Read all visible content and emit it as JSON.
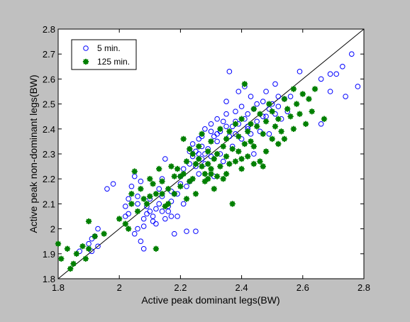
{
  "chart_data": {
    "type": "scatter",
    "xlabel": "Active peak dominant legs(BW)",
    "ylabel": "Active peak non-dominant legs(BW)",
    "xlim": [
      1.8,
      2.8
    ],
    "ylim": [
      1.8,
      2.8
    ],
    "x_ticks": [
      "1.8",
      "2",
      "2.2",
      "2.4",
      "2.6",
      "2.8"
    ],
    "y_ticks": [
      "1.8",
      "1.9",
      "2",
      "2.1",
      "2.2",
      "2.3",
      "2.4",
      "2.5",
      "2.6",
      "2.7",
      "2.8"
    ],
    "grid": false,
    "legend_position": "top-left",
    "reference_line": {
      "x": [
        1.8,
        2.8
      ],
      "y": [
        1.8,
        2.8
      ]
    },
    "colors": {
      "figure_background": "#c0c0c0",
      "axes_background": "#ffffff",
      "series_5min": "#0000ff",
      "series_125min": "#007f00",
      "reference_line": "#000000"
    },
    "series": [
      {
        "name": "5 min.",
        "marker": "open-circle",
        "color": "#0000ff",
        "points": [
          [
            1.87,
            1.91
          ],
          [
            1.9,
            1.94
          ],
          [
            1.91,
            1.96
          ],
          [
            1.92,
            1.97
          ],
          [
            1.93,
            2.0
          ],
          [
            1.91,
            1.91
          ],
          [
            1.93,
            1.93
          ],
          [
            1.96,
            2.16
          ],
          [
            1.98,
            2.18
          ],
          [
            2.02,
            2.05
          ],
          [
            2.02,
            2.09
          ],
          [
            2.03,
            2.06
          ],
          [
            2.03,
            2.12
          ],
          [
            2.04,
            2.17
          ],
          [
            2.05,
            2.21
          ],
          [
            2.06,
            2.13
          ],
          [
            2.06,
            2.1
          ],
          [
            2.07,
            2.19
          ],
          [
            2.07,
            1.95
          ],
          [
            2.08,
            1.92
          ],
          [
            2.08,
            2.01
          ],
          [
            2.08,
            2.04
          ],
          [
            2.09,
            2.06
          ],
          [
            2.09,
            2.09
          ],
          [
            2.1,
            2.12
          ],
          [
            2.11,
            2.05
          ],
          [
            2.11,
            2.03
          ],
          [
            2.12,
            2.02
          ],
          [
            2.12,
            2.08
          ],
          [
            2.13,
            2.1
          ],
          [
            2.13,
            2.16
          ],
          [
            2.14,
            2.13
          ],
          [
            2.14,
            2.2
          ],
          [
            2.15,
            2.28
          ],
          [
            2.15,
            2.04
          ],
          [
            2.16,
            2.09
          ],
          [
            2.16,
            2.07
          ],
          [
            2.17,
            2.11
          ],
          [
            2.17,
            2.15
          ],
          [
            2.18,
            1.98
          ],
          [
            2.19,
            2.05
          ],
          [
            2.19,
            2.14
          ],
          [
            2.2,
            2.21
          ],
          [
            2.21,
            2.1
          ],
          [
            2.21,
            2.24
          ],
          [
            2.22,
            2.17
          ],
          [
            2.22,
            1.99
          ],
          [
            2.23,
            2.26
          ],
          [
            2.23,
            2.19
          ],
          [
            2.24,
            2.29
          ],
          [
            2.24,
            2.34
          ],
          [
            2.25,
            2.31
          ],
          [
            2.25,
            1.99
          ],
          [
            2.26,
            2.36
          ],
          [
            2.26,
            2.22
          ],
          [
            2.27,
            2.28
          ],
          [
            2.27,
            2.33
          ],
          [
            2.28,
            2.26
          ],
          [
            2.28,
            2.4
          ],
          [
            2.29,
            2.32
          ],
          [
            2.3,
            2.42
          ],
          [
            2.3,
            2.29
          ],
          [
            2.31,
            2.37
          ],
          [
            2.31,
            2.21
          ],
          [
            2.32,
            2.44
          ],
          [
            2.32,
            2.35
          ],
          [
            2.33,
            2.3
          ],
          [
            2.33,
            2.39
          ],
          [
            2.34,
            2.43
          ],
          [
            2.34,
            2.27
          ],
          [
            2.35,
            2.46
          ],
          [
            2.35,
            2.51
          ],
          [
            2.36,
            2.37
          ],
          [
            2.36,
            2.63
          ],
          [
            2.37,
            2.41
          ],
          [
            2.37,
            2.33
          ],
          [
            2.38,
            2.47
          ],
          [
            2.38,
            2.38
          ],
          [
            2.39,
            2.55
          ],
          [
            2.39,
            2.42
          ],
          [
            2.4,
            2.36
          ],
          [
            2.4,
            2.49
          ],
          [
            2.41,
            2.44
          ],
          [
            2.41,
            2.57
          ],
          [
            2.42,
            2.4
          ],
          [
            2.42,
            2.46
          ],
          [
            2.43,
            2.53
          ],
          [
            2.43,
            2.38
          ],
          [
            2.44,
            2.3
          ],
          [
            2.44,
            2.48
          ],
          [
            2.45,
            2.43
          ],
          [
            2.45,
            2.5
          ],
          [
            2.46,
            2.39
          ],
          [
            2.47,
            2.45
          ],
          [
            2.47,
            2.51
          ],
          [
            2.48,
            2.55
          ],
          [
            2.49,
            2.48
          ],
          [
            2.49,
            2.38
          ],
          [
            2.5,
            2.5
          ],
          [
            2.51,
            2.46
          ],
          [
            2.52,
            2.53
          ],
          [
            2.52,
            2.49
          ],
          [
            2.53,
            2.44
          ],
          [
            2.54,
            2.52
          ],
          [
            2.55,
            2.47
          ],
          [
            2.56,
            2.53
          ],
          [
            2.59,
            2.63
          ],
          [
            2.66,
            2.42
          ],
          [
            2.66,
            2.6
          ],
          [
            2.69,
            2.62
          ],
          [
            2.69,
            2.55
          ],
          [
            2.71,
            2.62
          ],
          [
            2.73,
            2.65
          ],
          [
            2.74,
            2.53
          ],
          [
            2.76,
            2.7
          ],
          [
            2.78,
            2.57
          ],
          [
            2.27,
            2.37
          ],
          [
            2.3,
            2.39
          ],
          [
            2.32,
            2.38
          ],
          [
            2.28,
            2.3
          ],
          [
            2.35,
            2.41
          ],
          [
            2.38,
            2.43
          ],
          [
            2.18,
            2.14
          ],
          [
            2.2,
            2.18
          ],
          [
            2.1,
            2.07
          ],
          [
            2.06,
            2.0
          ],
          [
            2.05,
            1.98
          ],
          [
            2.14,
            2.07
          ],
          [
            2.17,
            2.05
          ],
          [
            2.23,
            2.31
          ],
          [
            2.25,
            2.25
          ],
          [
            2.42,
            2.41
          ],
          [
            2.48,
            2.45
          ],
          [
            2.51,
            2.58
          ],
          [
            2.26,
            2.3
          ]
        ]
      },
      {
        "name": "125 min.",
        "marker": "asterisk",
        "color": "#007f00",
        "points": [
          [
            1.8,
            1.94
          ],
          [
            1.81,
            1.88
          ],
          [
            1.83,
            1.92
          ],
          [
            1.84,
            1.84
          ],
          [
            1.85,
            1.86
          ],
          [
            1.86,
            1.9
          ],
          [
            1.88,
            1.93
          ],
          [
            1.89,
            1.88
          ],
          [
            1.9,
            2.03
          ],
          [
            1.9,
            1.92
          ],
          [
            1.92,
            1.97
          ],
          [
            1.95,
            1.98
          ],
          [
            2.0,
            2.04
          ],
          [
            2.02,
            2.02
          ],
          [
            2.03,
            2.0
          ],
          [
            2.04,
            2.1
          ],
          [
            2.04,
            2.14
          ],
          [
            2.05,
            2.23
          ],
          [
            2.06,
            2.07
          ],
          [
            2.07,
            2.16
          ],
          [
            2.08,
            2.12
          ],
          [
            2.09,
            2.1
          ],
          [
            2.1,
            2.2
          ],
          [
            2.11,
            2.18
          ],
          [
            2.12,
            2.14
          ],
          [
            2.12,
            1.92
          ],
          [
            2.13,
            2.24
          ],
          [
            2.14,
            2.19
          ],
          [
            2.15,
            2.09
          ],
          [
            2.16,
            2.1
          ],
          [
            2.17,
            2.25
          ],
          [
            2.18,
            2.14
          ],
          [
            2.19,
            2.24
          ],
          [
            2.2,
            2.21
          ],
          [
            2.2,
            2.17
          ],
          [
            2.21,
            2.36
          ],
          [
            2.22,
            2.27
          ],
          [
            2.22,
            2.12
          ],
          [
            2.23,
            2.19
          ],
          [
            2.24,
            2.3
          ],
          [
            2.24,
            2.2
          ],
          [
            2.25,
            2.26
          ],
          [
            2.25,
            2.14
          ],
          [
            2.26,
            2.33
          ],
          [
            2.27,
            2.25
          ],
          [
            2.27,
            2.38
          ],
          [
            2.28,
            2.22
          ],
          [
            2.28,
            2.19
          ],
          [
            2.29,
            2.31
          ],
          [
            2.29,
            2.26
          ],
          [
            2.3,
            2.24
          ],
          [
            2.3,
            2.35
          ],
          [
            2.31,
            2.28
          ],
          [
            2.31,
            2.16
          ],
          [
            2.32,
            2.3
          ],
          [
            2.33,
            2.4
          ],
          [
            2.33,
            2.25
          ],
          [
            2.34,
            2.33
          ],
          [
            2.34,
            2.2
          ],
          [
            2.35,
            2.36
          ],
          [
            2.35,
            2.29
          ],
          [
            2.36,
            2.26
          ],
          [
            2.37,
            2.1
          ],
          [
            2.37,
            2.32
          ],
          [
            2.38,
            2.42
          ],
          [
            2.38,
            2.27
          ],
          [
            2.39,
            2.31
          ],
          [
            2.39,
            2.37
          ],
          [
            2.4,
            2.44
          ],
          [
            2.4,
            2.24
          ],
          [
            2.41,
            2.58
          ],
          [
            2.41,
            2.34
          ],
          [
            2.42,
            2.39
          ],
          [
            2.42,
            2.29
          ],
          [
            2.43,
            2.42
          ],
          [
            2.43,
            2.35
          ],
          [
            2.44,
            2.48
          ],
          [
            2.44,
            2.33
          ],
          [
            2.45,
            2.41
          ],
          [
            2.46,
            2.46
          ],
          [
            2.46,
            2.27
          ],
          [
            2.47,
            2.38
          ],
          [
            2.48,
            2.43
          ],
          [
            2.48,
            2.31
          ],
          [
            2.49,
            2.5
          ],
          [
            2.5,
            2.36
          ],
          [
            2.5,
            2.47
          ],
          [
            2.51,
            2.41
          ],
          [
            2.52,
            2.44
          ],
          [
            2.53,
            2.39
          ],
          [
            2.54,
            2.52
          ],
          [
            2.54,
            2.36
          ],
          [
            2.55,
            2.48
          ],
          [
            2.56,
            2.45
          ],
          [
            2.57,
            2.56
          ],
          [
            2.57,
            2.4
          ],
          [
            2.58,
            2.5
          ],
          [
            2.59,
            2.46
          ],
          [
            2.6,
            2.54
          ],
          [
            2.61,
            2.42
          ],
          [
            2.62,
            2.52
          ],
          [
            2.63,
            2.47
          ],
          [
            2.64,
            2.56
          ],
          [
            2.67,
            2.44
          ],
          [
            2.32,
            2.21
          ],
          [
            2.26,
            2.28
          ],
          [
            2.29,
            2.2
          ],
          [
            2.36,
            2.39
          ],
          [
            2.23,
            2.32
          ],
          [
            2.21,
            2.22
          ],
          [
            2.18,
            2.21
          ],
          [
            2.16,
            2.16
          ],
          [
            2.14,
            2.14
          ],
          [
            2.1,
            2.13
          ],
          [
            2.44,
            2.26
          ],
          [
            2.4,
            2.28
          ],
          [
            2.35,
            2.22
          ],
          [
            2.47,
            2.25
          ],
          [
            2.52,
            2.34
          ],
          [
            2.3,
            2.22
          ]
        ]
      }
    ]
  }
}
